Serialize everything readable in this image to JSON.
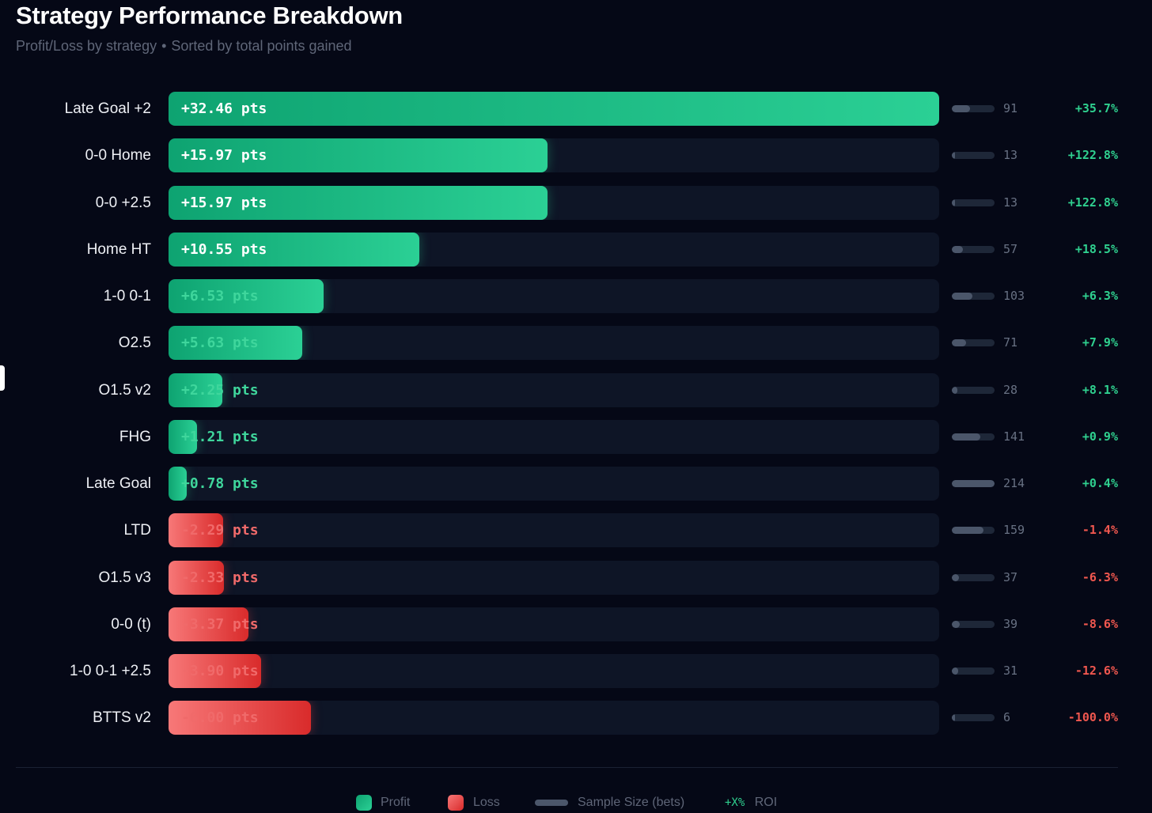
{
  "title": "Strategy Performance Breakdown",
  "subtitle": {
    "left": "Profit/Loss by strategy",
    "separator": "•",
    "right": "Sorted by total points gained"
  },
  "legend": {
    "profit": "Profit",
    "loss": "Loss",
    "sample": "Sample Size (bets)",
    "roi_symbol": "+X%",
    "roi": "ROI"
  },
  "colors": {
    "profit": "#2bd095",
    "loss": "#e84545",
    "background": "#050816",
    "track": "#0e1526"
  },
  "chart_data": {
    "type": "bar",
    "orientation": "horizontal",
    "title": "Strategy Performance Breakdown",
    "unit": "pts",
    "max_points": 32.46,
    "max_sample": 214,
    "categories": [
      "Late Goal +2",
      "0-0 Home",
      "0-0 +2.5",
      "Home HT",
      "1-0 0-1",
      "O2.5",
      "O1.5 v2",
      "FHG",
      "Late Goal",
      "LTD",
      "O1.5 v3",
      "0-0 (t)",
      "1-0 0-1 +2.5",
      "BTTS v2"
    ],
    "rows": [
      {
        "name": "Late Goal +2",
        "points": 32.46,
        "points_label": "+32.46 pts",
        "bets": 91,
        "bets_label": "91",
        "roi": 35.7,
        "roi_label": "+35.7%"
      },
      {
        "name": "0-0 Home",
        "points": 15.97,
        "points_label": "+15.97 pts",
        "bets": 13,
        "bets_label": "13",
        "roi": 122.8,
        "roi_label": "+122.8%"
      },
      {
        "name": "0-0 +2.5",
        "points": 15.97,
        "points_label": "+15.97 pts",
        "bets": 13,
        "bets_label": "13",
        "roi": 122.8,
        "roi_label": "+122.8%"
      },
      {
        "name": "Home HT",
        "points": 10.55,
        "points_label": "+10.55 pts",
        "bets": 57,
        "bets_label": "57",
        "roi": 18.5,
        "roi_label": "+18.5%"
      },
      {
        "name": "1-0 0-1",
        "points": 6.53,
        "points_label": "+6.53 pts",
        "bets": 103,
        "bets_label": "103",
        "roi": 6.3,
        "roi_label": "+6.3%"
      },
      {
        "name": "O2.5",
        "points": 5.63,
        "points_label": "+5.63 pts",
        "bets": 71,
        "bets_label": "71",
        "roi": 7.9,
        "roi_label": "+7.9%"
      },
      {
        "name": "O1.5 v2",
        "points": 2.25,
        "points_label": "+2.25 pts",
        "bets": 28,
        "bets_label": "28",
        "roi": 8.1,
        "roi_label": "+8.1%"
      },
      {
        "name": "FHG",
        "points": 1.21,
        "points_label": "+1.21 pts",
        "bets": 141,
        "bets_label": "141",
        "roi": 0.9,
        "roi_label": "+0.9%"
      },
      {
        "name": "Late Goal",
        "points": 0.78,
        "points_label": "+0.78 pts",
        "bets": 214,
        "bets_label": "214",
        "roi": 0.4,
        "roi_label": "+0.4%"
      },
      {
        "name": "LTD",
        "points": -2.29,
        "points_label": "-2.29 pts",
        "bets": 159,
        "bets_label": "159",
        "roi": -1.4,
        "roi_label": "-1.4%"
      },
      {
        "name": "O1.5 v3",
        "points": -2.33,
        "points_label": "-2.33 pts",
        "bets": 37,
        "bets_label": "37",
        "roi": -6.3,
        "roi_label": "-6.3%"
      },
      {
        "name": "0-0 (t)",
        "points": -3.37,
        "points_label": "-3.37 pts",
        "bets": 39,
        "bets_label": "39",
        "roi": -8.6,
        "roi_label": "-8.6%"
      },
      {
        "name": "1-0 0-1 +2.5",
        "points": -3.9,
        "points_label": "-3.90 pts",
        "bets": 31,
        "bets_label": "31",
        "roi": -12.6,
        "roi_label": "-12.6%"
      },
      {
        "name": "BTTS v2",
        "points": -6.0,
        "points_label": "-6.00 pts",
        "bets": 6,
        "bets_label": "6",
        "roi": -100.0,
        "roi_label": "-100.0%"
      }
    ]
  }
}
